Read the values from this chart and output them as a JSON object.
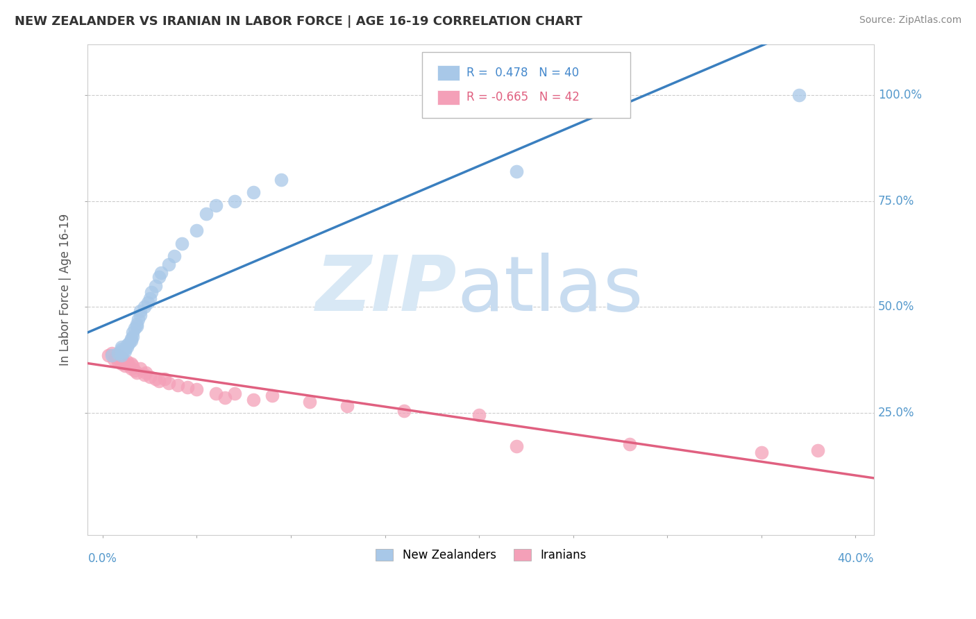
{
  "title": "NEW ZEALANDER VS IRANIAN IN LABOR FORCE | AGE 16-19 CORRELATION CHART",
  "source": "Source: ZipAtlas.com",
  "ylabel": "In Labor Force | Age 16-19",
  "blue_color": "#A8C8E8",
  "pink_color": "#F4A0B8",
  "blue_line_color": "#3A7FBF",
  "pink_line_color": "#E06080",
  "watermark_zip": "ZIP",
  "watermark_atlas": "atlas",
  "background_color": "#FFFFFF",
  "blue_x": [
    0.005,
    0.008,
    0.01,
    0.01,
    0.01,
    0.01,
    0.01,
    0.012,
    0.012,
    0.013,
    0.013,
    0.014,
    0.015,
    0.015,
    0.016,
    0.016,
    0.017,
    0.018,
    0.018,
    0.019,
    0.02,
    0.02,
    0.022,
    0.024,
    0.025,
    0.026,
    0.028,
    0.03,
    0.031,
    0.035,
    0.038,
    0.042,
    0.05,
    0.055,
    0.06,
    0.07,
    0.08,
    0.095,
    0.22,
    0.37
  ],
  "blue_y": [
    0.385,
    0.39,
    0.385,
    0.39,
    0.395,
    0.4,
    0.405,
    0.395,
    0.4,
    0.405,
    0.41,
    0.415,
    0.42,
    0.425,
    0.43,
    0.44,
    0.45,
    0.455,
    0.46,
    0.47,
    0.48,
    0.49,
    0.5,
    0.51,
    0.52,
    0.535,
    0.55,
    0.57,
    0.58,
    0.6,
    0.62,
    0.65,
    0.68,
    0.72,
    0.74,
    0.75,
    0.77,
    0.8,
    0.82,
    1.0
  ],
  "pink_x": [
    0.003,
    0.005,
    0.006,
    0.007,
    0.008,
    0.008,
    0.009,
    0.01,
    0.01,
    0.011,
    0.012,
    0.013,
    0.014,
    0.015,
    0.015,
    0.016,
    0.017,
    0.018,
    0.02,
    0.022,
    0.023,
    0.025,
    0.028,
    0.03,
    0.033,
    0.035,
    0.04,
    0.045,
    0.05,
    0.06,
    0.065,
    0.07,
    0.08,
    0.09,
    0.11,
    0.13,
    0.16,
    0.2,
    0.22,
    0.28,
    0.35,
    0.38
  ],
  "pink_y": [
    0.385,
    0.39,
    0.375,
    0.38,
    0.37,
    0.385,
    0.375,
    0.365,
    0.38,
    0.37,
    0.36,
    0.37,
    0.36,
    0.355,
    0.365,
    0.36,
    0.35,
    0.345,
    0.355,
    0.34,
    0.345,
    0.335,
    0.33,
    0.325,
    0.33,
    0.32,
    0.315,
    0.31,
    0.305,
    0.295,
    0.285,
    0.295,
    0.28,
    0.29,
    0.275,
    0.265,
    0.255,
    0.245,
    0.17,
    0.175,
    0.155,
    0.16
  ],
  "xlim": [
    0.0,
    0.4
  ],
  "ylim": [
    0.0,
    1.1
  ],
  "ytick_vals": [
    0.25,
    0.5,
    0.75,
    1.0
  ],
  "ytick_labels": [
    "25.0%",
    "50.0%",
    "75.0%",
    "100.0%"
  ],
  "xtick_left_label": "0.0%",
  "xtick_right_label": "40.0%"
}
